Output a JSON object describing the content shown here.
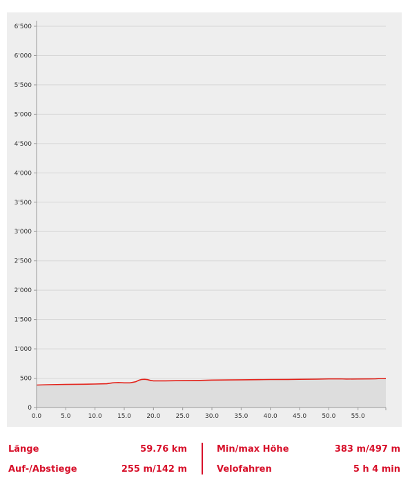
{
  "chart_data": {
    "type": "area",
    "title": "",
    "xlabel": "",
    "ylabel": "",
    "xlim": [
      0,
      59.76
    ],
    "ylim": [
      0,
      6500
    ],
    "grid": true,
    "x_ticks": [
      "0.0",
      "5.0",
      "10.0",
      "15.0",
      "20.0",
      "25.0",
      "30.0",
      "35.0",
      "40.0",
      "45.0",
      "50.0",
      "55.0"
    ],
    "y_ticks": [
      "0",
      "500",
      "1'000",
      "1'500",
      "2'000",
      "2'500",
      "3'000",
      "3'500",
      "4'000",
      "4'500",
      "5'000",
      "5'500",
      "6'000",
      "6'500"
    ],
    "y_tick_values": [
      0,
      500,
      1000,
      1500,
      2000,
      2500,
      3000,
      3500,
      4000,
      4500,
      5000,
      5500,
      6000,
      6500
    ],
    "x_tick_values": [
      0,
      5,
      10,
      15,
      20,
      25,
      30,
      35,
      40,
      45,
      50,
      55
    ],
    "series": [
      {
        "x": [
          0,
          2,
          5,
          8,
          10,
          12,
          13,
          14,
          15,
          16,
          17,
          17.5,
          18,
          18.5,
          19,
          19.5,
          20,
          22,
          25,
          28,
          30,
          33,
          35,
          38,
          40,
          43,
          45,
          48,
          50,
          52,
          53,
          55,
          57,
          58,
          59,
          59.76
        ],
        "y": [
          383,
          388,
          393,
          397,
          400,
          405,
          420,
          425,
          420,
          420,
          440,
          465,
          478,
          480,
          475,
          462,
          455,
          455,
          458,
          462,
          467,
          470,
          472,
          475,
          477,
          478,
          481,
          484,
          487,
          489,
          485,
          486,
          488,
          490,
          495,
          497
        ],
        "color": "#e32119"
      }
    ],
    "fill_color": "#dddddd",
    "line_color": "#e32119"
  },
  "stats": {
    "length_label": "Länge",
    "length_value": "59.76 km",
    "updown_label": "Auf-/Abstiege",
    "updown_value": "255 m/142 m",
    "minmax_label": "Min/max Höhe",
    "minmax_value": "383 m/497 m",
    "activity_label": "Velofahren",
    "activity_value": "5 h 4 min"
  },
  "colors": {
    "accent": "#d7102a",
    "background": "#eeeeee",
    "grid": "#d6d6d6"
  }
}
